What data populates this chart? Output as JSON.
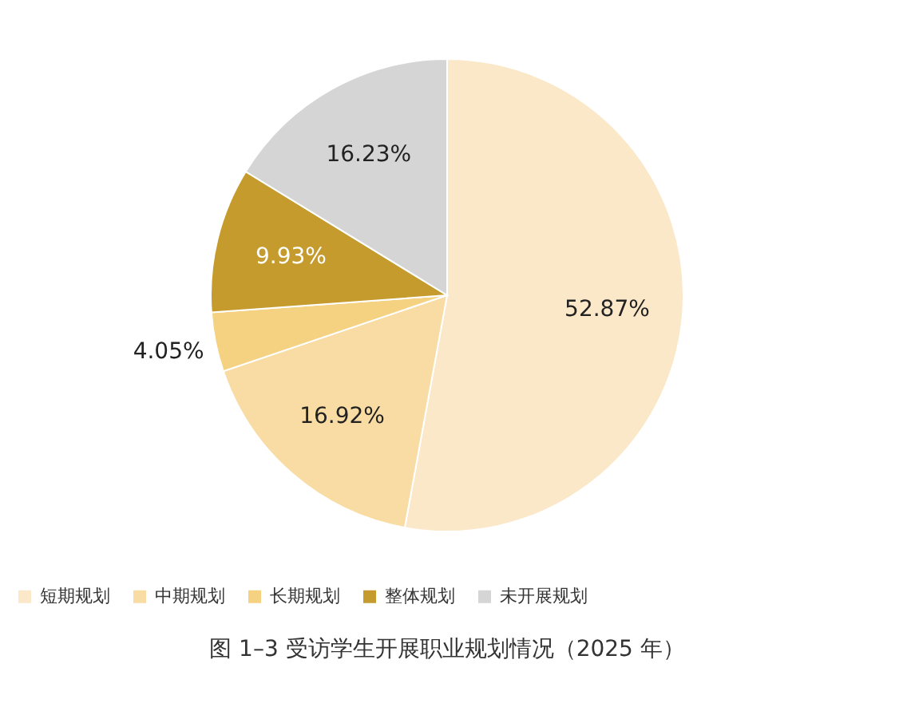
{
  "chart_data": {
    "type": "pie",
    "title": "图 1–3  受访学生开展职业规划情况（2025 年）",
    "categories": [
      "短期规划",
      "中期规划",
      "长期规划",
      "整体规划",
      "未开展规划"
    ],
    "values": [
      52.87,
      16.92,
      4.05,
      9.93,
      16.23
    ],
    "value_labels": [
      "52.87%",
      "16.92%",
      "4.05%",
      "9.93%",
      "16.23%"
    ],
    "colors": [
      "#fbe8c8",
      "#f8dca4",
      "#f4d282",
      "#c59b2e",
      "#d5d5d5"
    ],
    "legend": "bottom"
  }
}
